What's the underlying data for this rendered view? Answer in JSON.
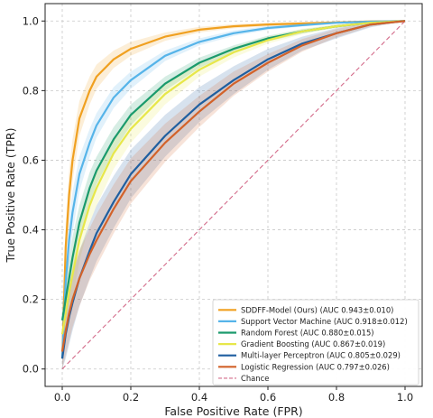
{
  "chart_data": {
    "type": "line",
    "title": "",
    "xlabel": "False Positive Rate (FPR)",
    "ylabel": "True Positive Rate (TPR)",
    "xlim": [
      -0.05,
      1.05
    ],
    "ylim": [
      -0.05,
      1.05
    ],
    "xticks": [
      "0.0",
      "0.2",
      "0.4",
      "0.6",
      "0.8",
      "1.0"
    ],
    "yticks": [
      "0.0",
      "0.2",
      "0.4",
      "0.6",
      "0.8",
      "1.0"
    ],
    "grid": true,
    "grid_style": "dashed",
    "legend_position": "lower-right",
    "series": [
      {
        "name": "SDDFF-Model (Ours) (AUC 0.943±0.010)",
        "color": "#f0a020",
        "x": [
          0.0,
          0.01,
          0.02,
          0.03,
          0.05,
          0.08,
          0.1,
          0.15,
          0.2,
          0.3,
          0.4,
          0.5,
          0.6,
          0.7,
          0.8,
          0.9,
          1.0
        ],
        "y": [
          0.03,
          0.35,
          0.5,
          0.6,
          0.72,
          0.8,
          0.84,
          0.89,
          0.92,
          0.955,
          0.975,
          0.985,
          0.99,
          0.993,
          0.996,
          0.999,
          1.0
        ],
        "band": [
          0.04,
          0.07,
          0.07,
          0.06,
          0.05,
          0.04,
          0.035,
          0.025,
          0.02,
          0.012,
          0.008,
          0.006,
          0.005,
          0.004,
          0.003,
          0.002,
          0.0
        ]
      },
      {
        "name": "Support Vector Machine (AUC 0.918±0.012)",
        "color": "#56b4e9",
        "x": [
          0.0,
          0.01,
          0.02,
          0.03,
          0.05,
          0.08,
          0.1,
          0.15,
          0.2,
          0.3,
          0.4,
          0.5,
          0.6,
          0.7,
          0.8,
          0.9,
          1.0
        ],
        "y": [
          0.03,
          0.25,
          0.37,
          0.45,
          0.56,
          0.65,
          0.7,
          0.78,
          0.83,
          0.9,
          0.94,
          0.965,
          0.98,
          0.988,
          0.995,
          0.998,
          1.0
        ],
        "band": [
          0.04,
          0.06,
          0.06,
          0.06,
          0.05,
          0.04,
          0.035,
          0.03,
          0.025,
          0.015,
          0.01,
          0.008,
          0.006,
          0.004,
          0.003,
          0.002,
          0.0
        ]
      },
      {
        "name": "Random Forest (AUC 0.880±0.015)",
        "color": "#1a9a6c",
        "x": [
          0.0,
          0.01,
          0.02,
          0.03,
          0.05,
          0.08,
          0.1,
          0.15,
          0.2,
          0.3,
          0.4,
          0.5,
          0.6,
          0.7,
          0.8,
          0.9,
          1.0
        ],
        "y": [
          0.14,
          0.2,
          0.26,
          0.32,
          0.42,
          0.52,
          0.57,
          0.66,
          0.73,
          0.82,
          0.88,
          0.92,
          0.95,
          0.97,
          0.985,
          0.995,
          1.0
        ],
        "band": [
          0.05,
          0.06,
          0.06,
          0.06,
          0.05,
          0.045,
          0.04,
          0.035,
          0.03,
          0.02,
          0.015,
          0.01,
          0.008,
          0.006,
          0.004,
          0.002,
          0.0
        ]
      },
      {
        "name": "Gradient Boosting (AUC 0.867±0.019)",
        "color": "#e7e74a",
        "x": [
          0.0,
          0.01,
          0.02,
          0.03,
          0.05,
          0.08,
          0.1,
          0.15,
          0.2,
          0.3,
          0.4,
          0.5,
          0.6,
          0.7,
          0.8,
          0.9,
          1.0
        ],
        "y": [
          0.1,
          0.16,
          0.22,
          0.27,
          0.37,
          0.47,
          0.52,
          0.62,
          0.69,
          0.79,
          0.86,
          0.91,
          0.945,
          0.97,
          0.985,
          0.995,
          1.0
        ],
        "band": [
          0.06,
          0.07,
          0.07,
          0.07,
          0.06,
          0.05,
          0.05,
          0.045,
          0.04,
          0.03,
          0.02,
          0.015,
          0.01,
          0.008,
          0.005,
          0.003,
          0.0
        ]
      },
      {
        "name": "Multi-layer Perceptron (AUC 0.805±0.029)",
        "color": "#1f5fa0",
        "x": [
          0.0,
          0.01,
          0.02,
          0.03,
          0.05,
          0.08,
          0.1,
          0.15,
          0.2,
          0.3,
          0.4,
          0.5,
          0.6,
          0.7,
          0.8,
          0.9,
          1.0
        ],
        "y": [
          0.03,
          0.1,
          0.15,
          0.19,
          0.26,
          0.34,
          0.39,
          0.48,
          0.56,
          0.67,
          0.76,
          0.83,
          0.89,
          0.935,
          0.965,
          0.99,
          1.0
        ],
        "band": [
          0.05,
          0.07,
          0.08,
          0.08,
          0.08,
          0.08,
          0.08,
          0.075,
          0.07,
          0.06,
          0.05,
          0.04,
          0.03,
          0.02,
          0.015,
          0.008,
          0.0
        ]
      },
      {
        "name": "Logistic Regression (AUC 0.797±0.026)",
        "color": "#d2622a",
        "x": [
          0.0,
          0.01,
          0.02,
          0.03,
          0.05,
          0.08,
          0.1,
          0.15,
          0.2,
          0.3,
          0.4,
          0.5,
          0.6,
          0.7,
          0.8,
          0.9,
          1.0
        ],
        "y": [
          0.05,
          0.11,
          0.16,
          0.2,
          0.26,
          0.33,
          0.37,
          0.46,
          0.54,
          0.65,
          0.74,
          0.82,
          0.88,
          0.93,
          0.965,
          0.99,
          1.0
        ],
        "band": [
          0.05,
          0.07,
          0.08,
          0.08,
          0.08,
          0.075,
          0.075,
          0.07,
          0.065,
          0.055,
          0.045,
          0.035,
          0.025,
          0.018,
          0.012,
          0.006,
          0.0
        ]
      }
    ],
    "reference_line": {
      "name": "Chance",
      "color": "#d36b8a",
      "style": "dashed",
      "x": [
        0.0,
        1.0
      ],
      "y": [
        0.0,
        1.0
      ]
    }
  }
}
